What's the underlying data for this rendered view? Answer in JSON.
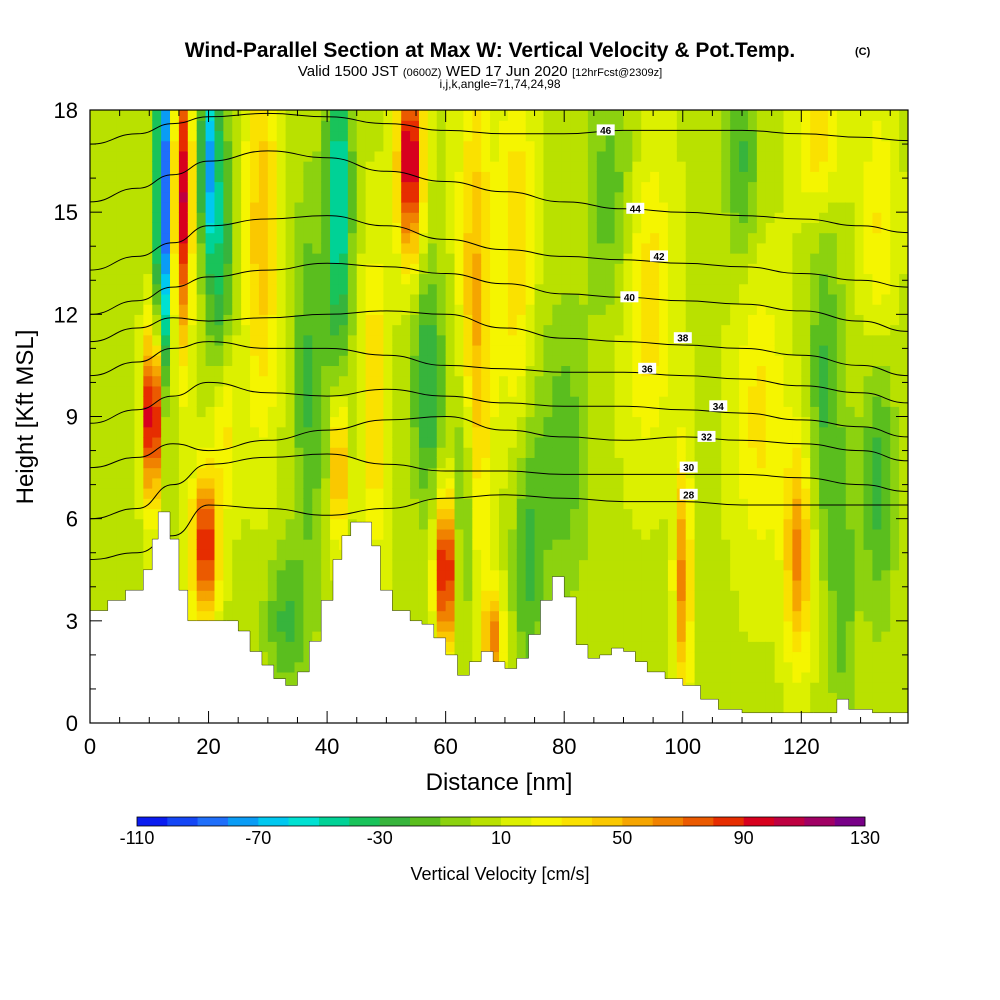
{
  "header": {
    "title": "Wind-Parallel Section at Max W: Vertical Velocity & Pot.Temp.",
    "title_tag": "(C)",
    "valid_prefix": "Valid 1500 JST",
    "valid_utc": "(0600Z)",
    "valid_date": "WED 17 Jun 2020",
    "forecast_info": "[12hrFcst@2309z]",
    "grid_info": "i,j,k,angle=71,74,24,98"
  },
  "chart_data": {
    "type": "heatmap",
    "xlabel": "Distance [nm]",
    "ylabel": "Height [Kft MSL]",
    "xlim": [
      0,
      138
    ],
    "ylim": [
      0,
      18
    ],
    "x_ticks": [
      "0",
      "20",
      "40",
      "60",
      "80",
      "100",
      "120"
    ],
    "y_ticks": [
      "0",
      "3",
      "6",
      "9",
      "12",
      "15",
      "18"
    ],
    "x_tick_values": [
      0,
      20,
      40,
      60,
      80,
      100,
      120
    ],
    "y_tick_values": [
      0,
      3,
      6,
      9,
      12,
      15,
      18
    ],
    "colorbar": {
      "title": "Vertical Velocity [cm/s]",
      "min": -110,
      "max": 130,
      "step": 10,
      "tick_labels": [
        "-110",
        "-70",
        "-30",
        "10",
        "50",
        "90",
        "130"
      ],
      "tick_values": [
        -110,
        -70,
        -30,
        10,
        50,
        90,
        130
      ],
      "colors": [
        "#0a1cf0",
        "#1446f5",
        "#1f6ffa",
        "#0a9cf5",
        "#00c8f0",
        "#00e1d2",
        "#00d296",
        "#19c35a",
        "#37b43c",
        "#5abe1e",
        "#8cd20f",
        "#b9e100",
        "#dcf000",
        "#f5f500",
        "#fae100",
        "#fac800",
        "#f5a500",
        "#f08200",
        "#eb5a00",
        "#e62d00",
        "#d7001e",
        "#be0041",
        "#a00064",
        "#780087"
      ]
    },
    "terrain_kft": [
      [
        0,
        3.3
      ],
      [
        3,
        3.6
      ],
      [
        6,
        3.9
      ],
      [
        9,
        4.5
      ],
      [
        10.5,
        5.4
      ],
      [
        11.5,
        6.2
      ],
      [
        12.5,
        6.2
      ],
      [
        13.5,
        5.4
      ],
      [
        15,
        3.9
      ],
      [
        16.5,
        3.0
      ],
      [
        18,
        3.0
      ],
      [
        20,
        3.0
      ],
      [
        23,
        3.0
      ],
      [
        25,
        2.7
      ],
      [
        27,
        2.1
      ],
      [
        29,
        1.7
      ],
      [
        31,
        1.3
      ],
      [
        33,
        1.1
      ],
      [
        35,
        1.5
      ],
      [
        37,
        2.4
      ],
      [
        39,
        3.6
      ],
      [
        41,
        4.8
      ],
      [
        42.5,
        5.5
      ],
      [
        44,
        5.9
      ],
      [
        46,
        5.9
      ],
      [
        47.5,
        5.2
      ],
      [
        49,
        3.9
      ],
      [
        51,
        3.3
      ],
      [
        54,
        3.0
      ],
      [
        56,
        2.9
      ],
      [
        58,
        2.5
      ],
      [
        60,
        2.0
      ],
      [
        62,
        1.4
      ],
      [
        64,
        1.8
      ],
      [
        66,
        2.1
      ],
      [
        68,
        1.8
      ],
      [
        70,
        1.6
      ],
      [
        72,
        1.9
      ],
      [
        74,
        2.6
      ],
      [
        76,
        3.6
      ],
      [
        78,
        4.3
      ],
      [
        80,
        3.7
      ],
      [
        82,
        2.3
      ],
      [
        84,
        1.9
      ],
      [
        86,
        2.0
      ],
      [
        88,
        2.2
      ],
      [
        90,
        2.1
      ],
      [
        92,
        1.8
      ],
      [
        94,
        1.5
      ],
      [
        97,
        1.3
      ],
      [
        100,
        1.1
      ],
      [
        103,
        0.7
      ],
      [
        106,
        0.4
      ],
      [
        110,
        0.3
      ],
      [
        116,
        0.3
      ],
      [
        122,
        0.3
      ],
      [
        126,
        0.7
      ],
      [
        128,
        0.4
      ],
      [
        132,
        0.3
      ],
      [
        138,
        0.3
      ]
    ],
    "w_features": [
      {
        "x": 10.5,
        "y": 9.0,
        "sx": 1.0,
        "sy": 1.7,
        "w": 110
      },
      {
        "x": 12.5,
        "y": 15.5,
        "sx": 1.0,
        "sy": 3.5,
        "w": -105
      },
      {
        "x": 15.5,
        "y": 15.5,
        "sx": 1.1,
        "sy": 3.0,
        "w": 95
      },
      {
        "x": 19.5,
        "y": 5.2,
        "sx": 1.6,
        "sy": 1.5,
        "w": 85
      },
      {
        "x": 22.0,
        "y": 13.0,
        "sx": 1.5,
        "sy": 4.0,
        "w": -45
      },
      {
        "x": 20.0,
        "y": 16.5,
        "sx": 1.0,
        "sy": 2.0,
        "w": -70
      },
      {
        "x": 22.5,
        "y": 9.0,
        "sx": 1.5,
        "sy": 2.0,
        "w": 45
      },
      {
        "x": 29.0,
        "y": 14.5,
        "sx": 2.0,
        "sy": 4.0,
        "w": 40
      },
      {
        "x": 33.0,
        "y": 3.0,
        "sx": 2.5,
        "sy": 1.5,
        "w": -30
      },
      {
        "x": 37.0,
        "y": 10.0,
        "sx": 2.0,
        "sy": 4.0,
        "w": -30
      },
      {
        "x": 42.0,
        "y": 15.5,
        "sx": 1.5,
        "sy": 3.5,
        "w": -60
      },
      {
        "x": 42.0,
        "y": 7.5,
        "sx": 0.9,
        "sy": 1.5,
        "w": 60
      },
      {
        "x": 48.0,
        "y": 9.5,
        "sx": 1.5,
        "sy": 3.0,
        "w": 35
      },
      {
        "x": 54.0,
        "y": 16.5,
        "sx": 1.5,
        "sy": 2.0,
        "w": 100
      },
      {
        "x": 57.0,
        "y": 10.0,
        "sx": 2.0,
        "sy": 2.5,
        "w": -40
      },
      {
        "x": 60.0,
        "y": 4.5,
        "sx": 1.2,
        "sy": 1.6,
        "w": 95
      },
      {
        "x": 63.0,
        "y": 6.5,
        "sx": 1.2,
        "sy": 3.0,
        "w": -35
      },
      {
        "x": 65.0,
        "y": 12.0,
        "sx": 2.0,
        "sy": 5.0,
        "w": 45
      },
      {
        "x": 68.0,
        "y": 2.5,
        "sx": 1.2,
        "sy": 1.0,
        "w": 55
      },
      {
        "x": 74.0,
        "y": 5.0,
        "sx": 2.0,
        "sy": 3.0,
        "w": -30
      },
      {
        "x": 72.0,
        "y": 14.0,
        "sx": 2.0,
        "sy": 4.0,
        "w": 30
      },
      {
        "x": 80.0,
        "y": 8.0,
        "sx": 3.0,
        "sy": 3.0,
        "w": -25
      },
      {
        "x": 88.0,
        "y": 15.5,
        "sx": 3.0,
        "sy": 2.5,
        "w": -25
      },
      {
        "x": 94.0,
        "y": 12.5,
        "sx": 3.0,
        "sy": 3.0,
        "w": 30
      },
      {
        "x": 100.0,
        "y": 4.2,
        "sx": 1.0,
        "sy": 2.5,
        "w": 55
      },
      {
        "x": 110.0,
        "y": 16.5,
        "sx": 2.0,
        "sy": 2.0,
        "w": -30
      },
      {
        "x": 113.0,
        "y": 9.0,
        "sx": 3.0,
        "sy": 3.0,
        "w": 25
      },
      {
        "x": 119.5,
        "y": 5.0,
        "sx": 1.6,
        "sy": 2.2,
        "w": 55
      },
      {
        "x": 124.0,
        "y": 10.0,
        "sx": 2.0,
        "sy": 3.5,
        "w": -30
      },
      {
        "x": 123.0,
        "y": 17.0,
        "sx": 2.5,
        "sy": 1.5,
        "w": 30
      },
      {
        "x": 127.0,
        "y": 4.0,
        "sx": 1.5,
        "sy": 3.0,
        "w": -25
      },
      {
        "x": 133.0,
        "y": 7.5,
        "sx": 2.0,
        "sy": 3.0,
        "w": -35
      },
      {
        "x": 133.0,
        "y": 14.0,
        "sx": 2.0,
        "sy": 3.0,
        "w": 25
      }
    ],
    "theta_contours": [
      {
        "value": "28",
        "points": [
          [
            0,
            4.8
          ],
          [
            8,
            5.0
          ],
          [
            14,
            5.5
          ],
          [
            20,
            6.4
          ],
          [
            30,
            6.3
          ],
          [
            40,
            6.1
          ],
          [
            50,
            6.3
          ],
          [
            60,
            6.6
          ],
          [
            70,
            6.7
          ],
          [
            80,
            6.6
          ],
          [
            90,
            6.5
          ],
          [
            100,
            6.5
          ],
          [
            110,
            6.4
          ],
          [
            120,
            6.4
          ],
          [
            130,
            6.4
          ],
          [
            138,
            6.4
          ]
        ],
        "label_at": [
          101,
          6.7
        ]
      },
      {
        "value": "30",
        "points": [
          [
            0,
            6.0
          ],
          [
            8,
            6.3
          ],
          [
            14,
            7.0
          ],
          [
            20,
            7.6
          ],
          [
            30,
            7.8
          ],
          [
            40,
            7.9
          ],
          [
            50,
            7.6
          ],
          [
            60,
            7.4
          ],
          [
            70,
            7.4
          ],
          [
            80,
            7.3
          ],
          [
            90,
            7.3
          ],
          [
            100,
            7.3
          ],
          [
            110,
            7.3
          ],
          [
            120,
            7.2
          ],
          [
            130,
            7.0
          ],
          [
            138,
            6.8
          ]
        ],
        "label_at": [
          101,
          7.5
        ]
      },
      {
        "value": "32",
        "points": [
          [
            0,
            7.5
          ],
          [
            8,
            7.8
          ],
          [
            14,
            8.2
          ],
          [
            20,
            8.0
          ],
          [
            30,
            8.3
          ],
          [
            40,
            8.6
          ],
          [
            50,
            8.9
          ],
          [
            60,
            9.0
          ],
          [
            70,
            8.6
          ],
          [
            80,
            8.4
          ],
          [
            90,
            8.3
          ],
          [
            100,
            8.4
          ],
          [
            110,
            8.3
          ],
          [
            120,
            8.2
          ],
          [
            130,
            8.0
          ],
          [
            138,
            7.7
          ]
        ],
        "label_at": [
          104,
          8.4
        ]
      },
      {
        "value": "34",
        "points": [
          [
            0,
            8.8
          ],
          [
            8,
            9.2
          ],
          [
            14,
            9.6
          ],
          [
            20,
            10.0
          ],
          [
            30,
            9.7
          ],
          [
            40,
            9.6
          ],
          [
            50,
            9.8
          ],
          [
            60,
            9.6
          ],
          [
            70,
            9.4
          ],
          [
            80,
            9.3
          ],
          [
            90,
            9.3
          ],
          [
            100,
            9.2
          ],
          [
            110,
            9.1
          ],
          [
            120,
            8.9
          ],
          [
            130,
            8.7
          ],
          [
            138,
            8.4
          ]
        ],
        "label_at": [
          106,
          9.3
        ]
      },
      {
        "value": "36",
        "points": [
          [
            0,
            10.2
          ],
          [
            8,
            10.6
          ],
          [
            14,
            11.0
          ],
          [
            20,
            11.2
          ],
          [
            30,
            11.0
          ],
          [
            40,
            11.0
          ],
          [
            50,
            10.8
          ],
          [
            60,
            10.5
          ],
          [
            70,
            10.4
          ],
          [
            80,
            10.3
          ],
          [
            90,
            10.3
          ],
          [
            100,
            10.2
          ],
          [
            110,
            10.1
          ],
          [
            120,
            9.9
          ],
          [
            130,
            9.7
          ],
          [
            138,
            9.4
          ]
        ],
        "label_at": [
          94,
          10.4
        ]
      },
      {
        "value": "38",
        "points": [
          [
            0,
            11.2
          ],
          [
            8,
            11.6
          ],
          [
            14,
            11.9
          ],
          [
            20,
            11.8
          ],
          [
            30,
            11.9
          ],
          [
            40,
            12.0
          ],
          [
            50,
            12.1
          ],
          [
            60,
            12.0
          ],
          [
            70,
            11.6
          ],
          [
            80,
            11.3
          ],
          [
            90,
            11.2
          ],
          [
            100,
            11.1
          ],
          [
            110,
            11.0
          ],
          [
            120,
            10.8
          ],
          [
            130,
            10.5
          ],
          [
            138,
            10.2
          ]
        ],
        "label_at": [
          100,
          11.3
        ]
      },
      {
        "value": "40",
        "points": [
          [
            0,
            12.0
          ],
          [
            8,
            12.4
          ],
          [
            14,
            12.8
          ],
          [
            20,
            13.1
          ],
          [
            30,
            13.3
          ],
          [
            40,
            13.5
          ],
          [
            50,
            13.4
          ],
          [
            60,
            13.2
          ],
          [
            70,
            12.9
          ],
          [
            80,
            12.6
          ],
          [
            90,
            12.5
          ],
          [
            100,
            12.4
          ],
          [
            110,
            12.3
          ],
          [
            120,
            12.1
          ],
          [
            130,
            11.8
          ],
          [
            138,
            11.5
          ]
        ],
        "label_at": [
          91,
          12.5
        ]
      },
      {
        "value": "42",
        "points": [
          [
            0,
            13.3
          ],
          [
            8,
            13.7
          ],
          [
            14,
            14.1
          ],
          [
            20,
            14.6
          ],
          [
            30,
            14.8
          ],
          [
            40,
            14.9
          ],
          [
            50,
            14.6
          ],
          [
            60,
            14.2
          ],
          [
            70,
            13.9
          ],
          [
            80,
            13.7
          ],
          [
            90,
            13.6
          ],
          [
            100,
            13.5
          ],
          [
            110,
            13.4
          ],
          [
            120,
            13.2
          ],
          [
            130,
            13.0
          ],
          [
            138,
            12.8
          ]
        ],
        "label_at": [
          96,
          13.7
        ]
      },
      {
        "value": "44",
        "points": [
          [
            0,
            15.3
          ],
          [
            8,
            15.7
          ],
          [
            14,
            16.1
          ],
          [
            20,
            16.5
          ],
          [
            30,
            16.8
          ],
          [
            40,
            16.6
          ],
          [
            50,
            16.2
          ],
          [
            60,
            15.9
          ],
          [
            70,
            15.6
          ],
          [
            80,
            15.3
          ],
          [
            90,
            15.1
          ],
          [
            100,
            15.0
          ],
          [
            110,
            14.9
          ],
          [
            120,
            14.8
          ],
          [
            130,
            14.6
          ],
          [
            138,
            14.4
          ]
        ],
        "label_at": [
          92,
          15.1
        ]
      },
      {
        "value": "46",
        "points": [
          [
            0,
            17.0
          ],
          [
            8,
            17.3
          ],
          [
            14,
            17.6
          ],
          [
            20,
            17.8
          ],
          [
            30,
            17.9
          ],
          [
            40,
            17.8
          ],
          [
            50,
            17.6
          ],
          [
            60,
            17.4
          ],
          [
            70,
            17.3
          ],
          [
            80,
            17.3
          ],
          [
            90,
            17.4
          ],
          [
            100,
            17.4
          ],
          [
            110,
            17.4
          ],
          [
            120,
            17.3
          ],
          [
            130,
            17.2
          ],
          [
            138,
            17.1
          ]
        ],
        "label_at": [
          87,
          17.4
        ]
      }
    ]
  }
}
